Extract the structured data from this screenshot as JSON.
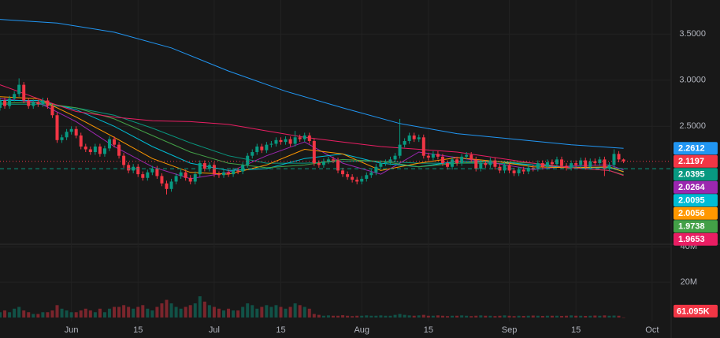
{
  "chart_data": {
    "type": "candlestick",
    "xlim": [
      0,
      141
    ],
    "xticks": [
      {
        "value": 15,
        "label": "Jun"
      },
      {
        "value": 29,
        "label": "15"
      },
      {
        "value": 45,
        "label": "Jul"
      },
      {
        "value": 59,
        "label": "15"
      },
      {
        "value": 76,
        "label": "Aug"
      },
      {
        "value": 90,
        "label": "15"
      },
      {
        "value": 107,
        "label": "Sep"
      },
      {
        "value": 121,
        "label": "15"
      },
      {
        "value": 137,
        "label": "Oct"
      }
    ],
    "ylim": [
      1.22,
      3.87
    ],
    "yticks": [
      {
        "value": 2.5,
        "label": "2.5000"
      },
      {
        "value": 3,
        "label": "3.0000"
      },
      {
        "value": 3.5,
        "label": "3.5000"
      }
    ],
    "grid": true,
    "up_color": "#089981",
    "down_color": "#f23645",
    "open": [
      2.7,
      2.78,
      2.72,
      2.8,
      2.85,
      2.95,
      2.78,
      2.72,
      2.76,
      2.74,
      2.78,
      2.72,
      2.62,
      2.35,
      2.38,
      2.44,
      2.47,
      2.4,
      2.28,
      2.25,
      2.22,
      2.28,
      2.2,
      2.26,
      2.36,
      2.3,
      2.18,
      2.08,
      2.02,
      2.06,
      1.98,
      1.94,
      2.0,
      2.04,
      1.96,
      1.88,
      1.82,
      1.9,
      1.96,
      2.0,
      1.94,
      1.9,
      1.98,
      2.1,
      2.04,
      2.08,
      1.98,
      1.97,
      2.0,
      1.98,
      2.02,
      2.01,
      2.08,
      2.18,
      2.22,
      2.28,
      2.24,
      2.3,
      2.31,
      2.35,
      2.33,
      2.36,
      2.31,
      2.38,
      2.36,
      2.4,
      2.34,
      2.1,
      2.08,
      2.12,
      2.14,
      2.13,
      2.02,
      1.98,
      1.95,
      1.92,
      1.9,
      1.93,
      1.97,
      2.0,
      2.06,
      2.1,
      2.11,
      2.14,
      2.18,
      2.3,
      2.34,
      2.4,
      2.36,
      2.38,
      2.18,
      2.16,
      2.2,
      2.17,
      2.1,
      2.06,
      2.14,
      2.1,
      2.17,
      2.19,
      2.14,
      2.04,
      2.1,
      2.08,
      2.13,
      2.06,
      2.02,
      2.08,
      2.02,
      1.99,
      2.03,
      2.01,
      2.05,
      2.04,
      2.1,
      2.06,
      2.11,
      2.09,
      2.14,
      2.07,
      2.05,
      2.1,
      2.08,
      2.13,
      2.06,
      2.12,
      2.1,
      2.14,
      2.04,
      2.08,
      2.2,
      2.14
    ],
    "high": [
      2.81,
      2.81,
      2.83,
      2.88,
      3.02,
      2.98,
      2.81,
      2.79,
      2.79,
      2.81,
      2.81,
      2.75,
      2.65,
      2.41,
      2.47,
      2.5,
      2.5,
      2.43,
      2.31,
      2.28,
      2.31,
      2.31,
      2.29,
      2.39,
      2.39,
      2.33,
      2.21,
      2.11,
      2.09,
      2.09,
      2.01,
      2.03,
      2.07,
      2.07,
      1.99,
      1.91,
      1.93,
      1.99,
      2.03,
      2.03,
      1.97,
      2.01,
      2.13,
      2.13,
      2.11,
      2.11,
      2.01,
      2.03,
      2.03,
      2.05,
      2.05,
      2.11,
      2.21,
      2.25,
      2.31,
      2.31,
      2.33,
      2.34,
      2.38,
      2.38,
      2.39,
      2.39,
      2.45,
      2.41,
      2.43,
      2.43,
      2.37,
      2.13,
      2.15,
      2.17,
      2.17,
      2.16,
      2.05,
      2.01,
      1.98,
      1.95,
      1.96,
      2.0,
      2.03,
      2.09,
      2.13,
      2.14,
      2.17,
      2.21,
      2.58,
      2.37,
      2.43,
      2.43,
      2.41,
      2.41,
      2.21,
      2.23,
      2.23,
      2.2,
      2.13,
      2.17,
      2.17,
      2.2,
      2.22,
      2.22,
      2.17,
      2.13,
      2.13,
      2.16,
      2.16,
      2.09,
      2.11,
      2.11,
      2.05,
      2.06,
      2.06,
      2.08,
      2.08,
      2.13,
      2.13,
      2.14,
      2.14,
      2.17,
      2.17,
      2.1,
      2.13,
      2.13,
      2.16,
      2.16,
      2.15,
      2.15,
      2.17,
      2.17,
      2.11,
      2.25,
      2.23,
      2.15
    ],
    "low": [
      2.67,
      2.69,
      2.69,
      2.77,
      2.82,
      2.75,
      2.69,
      2.69,
      2.71,
      2.71,
      2.69,
      2.59,
      2.32,
      2.32,
      2.35,
      2.41,
      2.37,
      2.25,
      2.22,
      2.19,
      2.19,
      2.17,
      2.17,
      2.23,
      2.27,
      2.15,
      2.05,
      1.99,
      1.99,
      1.95,
      1.91,
      1.91,
      1.97,
      1.93,
      1.85,
      1.76,
      1.79,
      1.87,
      1.93,
      1.91,
      1.87,
      1.87,
      1.95,
      2.01,
      2.01,
      1.95,
      1.94,
      1.94,
      1.95,
      1.95,
      1.98,
      1.98,
      2.05,
      2.15,
      2.19,
      2.21,
      2.21,
      2.27,
      2.28,
      2.3,
      2.3,
      2.28,
      2.28,
      2.33,
      2.33,
      2.31,
      2.07,
      2.05,
      2.05,
      2.09,
      2.1,
      1.99,
      1.95,
      1.92,
      1.89,
      1.87,
      1.87,
      1.9,
      1.94,
      1.97,
      2.03,
      2.07,
      2.08,
      2.11,
      2.15,
      2.27,
      2.31,
      2.33,
      2.33,
      2.15,
      2.13,
      2.13,
      2.14,
      2.07,
      2.03,
      2.03,
      2.07,
      2.07,
      2.14,
      2.11,
      2.01,
      2.01,
      2.05,
      2.05,
      2.03,
      1.99,
      1.99,
      1.99,
      1.96,
      1.96,
      1.98,
      1.98,
      2.01,
      2.01,
      2.03,
      2.03,
      2.06,
      2.06,
      2.04,
      2.02,
      2.02,
      2.05,
      2.05,
      2.03,
      2.03,
      2.07,
      2.07,
      1.96,
      2.01,
      2.05,
      2.11,
      2.1
    ],
    "close": [
      2.78,
      2.72,
      2.8,
      2.85,
      2.95,
      2.78,
      2.72,
      2.76,
      2.74,
      2.78,
      2.72,
      2.62,
      2.35,
      2.38,
      2.44,
      2.47,
      2.4,
      2.28,
      2.25,
      2.22,
      2.28,
      2.2,
      2.26,
      2.36,
      2.3,
      2.18,
      2.08,
      2.02,
      2.06,
      1.98,
      1.94,
      2.0,
      2.04,
      1.96,
      1.88,
      1.82,
      1.9,
      1.96,
      2.0,
      1.94,
      1.9,
      1.98,
      2.1,
      2.04,
      2.08,
      1.98,
      1.97,
      2.0,
      1.98,
      2.02,
      2.01,
      2.08,
      2.18,
      2.22,
      2.28,
      2.24,
      2.3,
      2.31,
      2.35,
      2.33,
      2.36,
      2.31,
      2.38,
      2.36,
      2.4,
      2.34,
      2.1,
      2.08,
      2.12,
      2.14,
      2.13,
      2.02,
      1.98,
      1.95,
      1.92,
      1.9,
      1.93,
      1.97,
      2.0,
      2.06,
      2.1,
      2.11,
      2.14,
      2.18,
      2.3,
      2.34,
      2.4,
      2.36,
      2.38,
      2.18,
      2.16,
      2.2,
      2.17,
      2.1,
      2.06,
      2.14,
      2.1,
      2.17,
      2.19,
      2.14,
      2.04,
      2.1,
      2.08,
      2.13,
      2.06,
      2.02,
      2.08,
      2.02,
      1.99,
      2.03,
      2.01,
      2.05,
      2.04,
      2.1,
      2.06,
      2.11,
      2.09,
      2.14,
      2.07,
      2.05,
      2.1,
      2.08,
      2.13,
      2.06,
      2.12,
      2.1,
      2.14,
      2.04,
      2.08,
      2.2,
      2.14,
      2.1197
    ],
    "series": [
      {
        "color": "#2196f3",
        "x": [
          0,
          12,
          24,
          36,
          48,
          60,
          72,
          84,
          96,
          108,
          120,
          131
        ],
        "values": [
          3.66,
          3.62,
          3.52,
          3.35,
          3.1,
          2.88,
          2.7,
          2.53,
          2.42,
          2.36,
          2.3,
          2.2612
        ]
      },
      {
        "color": "#089981",
        "x": [
          0,
          8,
          16,
          24,
          32,
          40,
          48,
          56,
          64,
          72,
          80,
          88,
          96,
          104,
          112,
          120,
          128,
          131
        ],
        "values": [
          2.74,
          2.74,
          2.7,
          2.62,
          2.48,
          2.32,
          2.18,
          2.1,
          2.1,
          2.12,
          2.12,
          2.1,
          2.1,
          2.1,
          2.08,
          2.06,
          2.05,
          2.0395
        ]
      },
      {
        "color": "#9c27b0",
        "x": [
          0,
          8,
          16,
          24,
          32,
          40,
          48,
          56,
          64,
          72,
          80,
          88,
          96,
          104,
          112,
          120,
          128,
          131
        ],
        "values": [
          2.8,
          2.76,
          2.55,
          2.28,
          2.06,
          1.93,
          2.0,
          2.18,
          2.33,
          2.1,
          1.98,
          2.22,
          2.16,
          2.1,
          2.03,
          2.07,
          2.08,
          2.0264
        ]
      },
      {
        "color": "#00bcd4",
        "x": [
          0,
          8,
          16,
          24,
          32,
          40,
          48,
          56,
          64,
          72,
          80,
          88,
          96,
          104,
          112,
          120,
          128,
          131
        ],
        "values": [
          2.78,
          2.78,
          2.68,
          2.5,
          2.28,
          2.1,
          2.02,
          2.04,
          2.15,
          2.2,
          2.1,
          2.06,
          2.12,
          2.12,
          2.08,
          2.05,
          2.05,
          2.0095
        ]
      },
      {
        "color": "#ff9800",
        "x": [
          0,
          8,
          16,
          24,
          32,
          40,
          48,
          56,
          64,
          72,
          80,
          88,
          96,
          104,
          112,
          120,
          128,
          131
        ],
        "values": [
          2.82,
          2.8,
          2.6,
          2.38,
          2.15,
          2.0,
          1.98,
          2.08,
          2.25,
          2.2,
          2.02,
          2.1,
          2.16,
          2.12,
          2.06,
          2.05,
          2.06,
          2.0056
        ]
      },
      {
        "color": "#43a047",
        "x": [
          0,
          8,
          16,
          24,
          32,
          40,
          48,
          56,
          64,
          72,
          80,
          88,
          96,
          104,
          112,
          120,
          128,
          131
        ],
        "values": [
          2.75,
          2.76,
          2.7,
          2.58,
          2.4,
          2.22,
          2.1,
          2.05,
          2.08,
          2.14,
          2.12,
          2.06,
          2.1,
          2.12,
          2.1,
          2.05,
          2.02,
          1.9738
        ]
      },
      {
        "color": "#e91e63",
        "x": [
          0,
          8,
          16,
          24,
          32,
          40,
          48,
          56,
          64,
          72,
          80,
          88,
          96,
          104,
          112,
          120,
          128,
          131
        ],
        "values": [
          2.95,
          2.8,
          2.66,
          2.6,
          2.56,
          2.55,
          2.52,
          2.45,
          2.38,
          2.33,
          2.28,
          2.25,
          2.22,
          2.16,
          2.1,
          2.05,
          2.02,
          1.9653
        ]
      }
    ],
    "volume": {
      "ylim": [
        0,
        41
      ],
      "yticks": [
        {
          "value": 20,
          "label": "20M"
        },
        {
          "value": 40,
          "label": "40M"
        }
      ],
      "values": [
        3,
        4,
        3,
        5,
        6,
        4,
        3,
        2,
        2,
        3,
        3,
        4,
        7,
        5,
        4,
        3,
        3,
        4,
        5,
        4,
        3,
        5,
        3,
        5,
        6,
        6,
        7,
        6,
        5,
        6,
        7,
        5,
        4,
        6,
        8,
        10,
        8,
        6,
        5,
        6,
        7,
        8,
        12,
        9,
        7,
        6,
        5,
        4,
        5,
        4,
        4,
        6,
        8,
        7,
        5,
        6,
        7,
        6,
        7,
        6,
        5,
        6,
        8,
        7,
        6,
        5,
        2,
        1.5,
        1,
        1.2,
        1,
        1,
        1.3,
        1,
        0.8,
        1,
        1,
        1.2,
        1,
        1,
        1.2,
        1,
        1,
        1.5,
        2,
        1.5,
        1.2,
        1,
        1.2,
        1.5,
        1,
        1,
        1.2,
        1,
        0.8,
        1,
        1,
        1.2,
        1,
        0.8,
        1,
        1.2,
        1,
        1,
        0.8,
        1,
        1.2,
        1,
        0.8,
        1,
        0.9,
        1,
        1.1,
        1,
        0.9,
        1,
        1,
        1,
        0.9,
        1,
        1.2,
        1,
        1,
        0.9,
        1,
        1.1,
        1,
        1.2,
        1,
        1.1,
        1,
        0.061095
      ],
      "last_label": "61.095K"
    }
  }
}
